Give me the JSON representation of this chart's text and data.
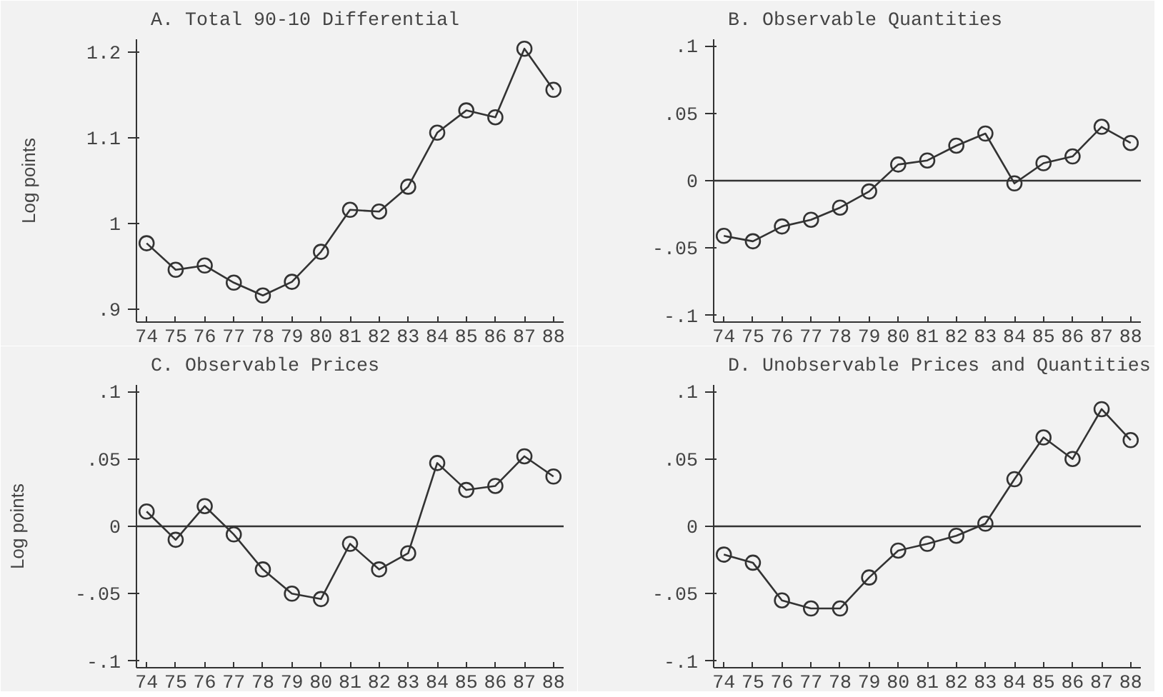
{
  "chart_data": [
    {
      "type": "line",
      "title": "A. Total 90-10 Differential",
      "ylabel": "Log points",
      "categories": [
        "74",
        "75",
        "76",
        "77",
        "78",
        "79",
        "80",
        "81",
        "82",
        "83",
        "84",
        "85",
        "86",
        "87",
        "88"
      ],
      "marker": "circle",
      "grid": false,
      "color": "#333333",
      "values": [
        0.977,
        0.946,
        0.951,
        0.931,
        0.916,
        0.932,
        0.967,
        1.016,
        1.014,
        1.043,
        1.106,
        1.132,
        1.124,
        1.204,
        1.156
      ],
      "ylim": [
        0.885,
        1.215
      ],
      "yticks": [
        {
          "value": 0.9,
          "label": ".9"
        },
        1,
        1.1,
        1.2
      ]
    },
    {
      "type": "line",
      "title": "B. Observable Quantities",
      "categories": [
        "74",
        "75",
        "76",
        "77",
        "78",
        "79",
        "80",
        "81",
        "82",
        "83",
        "84",
        "85",
        "86",
        "87",
        "88"
      ],
      "marker": "circle",
      "grid": false,
      "color": "#333333",
      "values": [
        -0.041,
        -0.045,
        -0.034,
        -0.029,
        -0.02,
        -0.008,
        0.012,
        0.015,
        0.026,
        0.035,
        -0.002,
        0.013,
        0.018,
        0.04,
        0.028
      ],
      "ylim": [
        -0.105,
        0.105
      ],
      "yticks": [
        {
          "value": -0.1,
          "label": "-.1"
        },
        {
          "value": -0.05,
          "label": "-.05"
        },
        0,
        {
          "value": 0.05,
          "label": ".05"
        },
        {
          "value": 0.1,
          "label": ".1"
        }
      ],
      "ref_lines": [
        {
          "axis": "y",
          "value": 0,
          "color": "#333333"
        }
      ]
    },
    {
      "type": "line",
      "title": "C. Observable Prices",
      "ylabel": "Log points",
      "categories": [
        "74",
        "75",
        "76",
        "77",
        "78",
        "79",
        "80",
        "81",
        "82",
        "83",
        "84",
        "85",
        "86",
        "87",
        "88"
      ],
      "marker": "circle",
      "grid": false,
      "color": "#333333",
      "values": [
        0.011,
        -0.01,
        0.015,
        -0.006,
        -0.032,
        -0.05,
        -0.054,
        -0.013,
        -0.032,
        -0.02,
        0.047,
        0.027,
        0.03,
        0.052,
        0.037
      ],
      "ylim": [
        -0.105,
        0.105
      ],
      "yticks": [
        {
          "value": -0.1,
          "label": "-.1"
        },
        {
          "value": -0.05,
          "label": "-.05"
        },
        0,
        {
          "value": 0.05,
          "label": ".05"
        },
        {
          "value": 0.1,
          "label": ".1"
        }
      ],
      "ref_lines": [
        {
          "axis": "y",
          "value": 0,
          "color": "#333333"
        }
      ]
    },
    {
      "type": "line",
      "title": "D. Unobservable Prices and Quantities",
      "categories": [
        "74",
        "75",
        "76",
        "77",
        "78",
        "79",
        "80",
        "81",
        "82",
        "83",
        "84",
        "85",
        "86",
        "87",
        "88"
      ],
      "marker": "circle",
      "grid": false,
      "color": "#333333",
      "values": [
        -0.021,
        -0.027,
        -0.055,
        -0.061,
        -0.061,
        -0.038,
        -0.018,
        -0.013,
        -0.007,
        0.002,
        0.035,
        0.066,
        0.05,
        0.087,
        0.064
      ],
      "ylim": [
        -0.105,
        0.105
      ],
      "yticks": [
        {
          "value": -0.1,
          "label": "-.1"
        },
        {
          "value": -0.05,
          "label": "-.05"
        },
        0,
        {
          "value": 0.05,
          "label": ".05"
        },
        {
          "value": 0.1,
          "label": ".1"
        }
      ],
      "ref_lines": [
        {
          "axis": "y",
          "value": 0,
          "color": "#333333"
        }
      ]
    }
  ]
}
